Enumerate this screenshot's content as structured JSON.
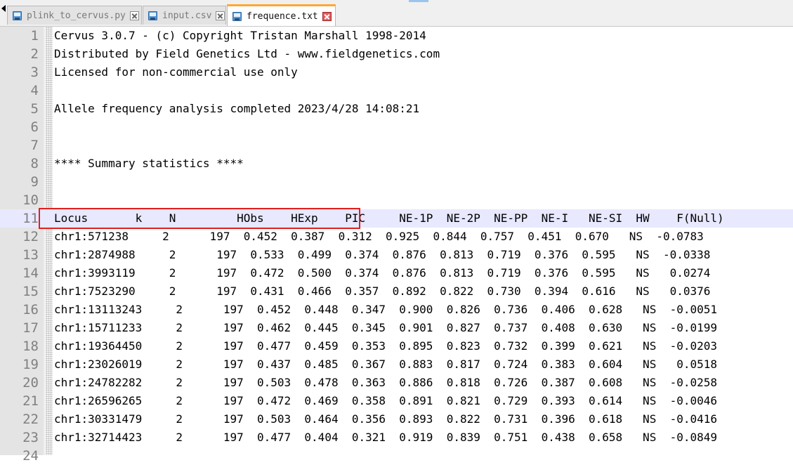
{
  "tabs": [
    {
      "label": "plink_to_cervus.py",
      "icon": "save-disk-icon",
      "active": false
    },
    {
      "label": "input.csv",
      "icon": "save-disk-icon",
      "active": false
    },
    {
      "label": "frequence.txt",
      "icon": "save-disk-icon",
      "active": true
    }
  ],
  "editor": {
    "lines": [
      {
        "n": "1",
        "text": "Cervus 3.0.7 - (c) Copyright Tristan Marshall 1998-2014"
      },
      {
        "n": "2",
        "text": "Distributed by Field Genetics Ltd - www.fieldgenetics.com"
      },
      {
        "n": "3",
        "text": "Licensed for non-commercial use only"
      },
      {
        "n": "4",
        "text": ""
      },
      {
        "n": "5",
        "text": "Allele frequency analysis completed 2023/4/28 14:08:21"
      },
      {
        "n": "6",
        "text": ""
      },
      {
        "n": "7",
        "text": ""
      },
      {
        "n": "8",
        "text": "**** Summary statistics ****"
      },
      {
        "n": "9",
        "text": ""
      },
      {
        "n": "10",
        "text": ""
      },
      {
        "n": "11",
        "text": "Locus       k    N         HObs    HExp    PIC     NE-1P  NE-2P  NE-PP  NE-I   NE-SI  HW    F(Null)"
      },
      {
        "n": "12",
        "text": "chr1:571238     2      197  0.452  0.387  0.312  0.925  0.844  0.757  0.451  0.670   NS  -0.0783"
      },
      {
        "n": "13",
        "text": "chr1:2874988     2      197  0.533  0.499  0.374  0.876  0.813  0.719  0.376  0.595   NS  -0.0338"
      },
      {
        "n": "14",
        "text": "chr1:3993119     2      197  0.472  0.500  0.374  0.876  0.813  0.719  0.376  0.595   NS   0.0274"
      },
      {
        "n": "15",
        "text": "chr1:7523290     2      197  0.431  0.466  0.357  0.892  0.822  0.730  0.394  0.616   NS   0.0376"
      },
      {
        "n": "16",
        "text": "chr1:13113243     2      197  0.452  0.448  0.347  0.900  0.826  0.736  0.406  0.628   NS  -0.0051"
      },
      {
        "n": "17",
        "text": "chr1:15711233     2      197  0.462  0.445  0.345  0.901  0.827  0.737  0.408  0.630   NS  -0.0199"
      },
      {
        "n": "18",
        "text": "chr1:19364450     2      197  0.477  0.459  0.353  0.895  0.823  0.732  0.399  0.621   NS  -0.0203"
      },
      {
        "n": "19",
        "text": "chr1:23026019     2      197  0.437  0.485  0.367  0.883  0.817  0.724  0.383  0.604   NS   0.0518"
      },
      {
        "n": "20",
        "text": "chr1:24782282     2      197  0.503  0.478  0.363  0.886  0.818  0.726  0.387  0.608   NS  -0.0258"
      },
      {
        "n": "21",
        "text": "chr1:26596265     2      197  0.472  0.469  0.358  0.891  0.821  0.729  0.393  0.614   NS  -0.0046"
      },
      {
        "n": "22",
        "text": "chr1:30331479     2      197  0.503  0.464  0.356  0.893  0.822  0.731  0.396  0.618   NS  -0.0416"
      },
      {
        "n": "23",
        "text": "chr1:32714423     2      197  0.477  0.404  0.321  0.919  0.839  0.751  0.438  0.658   NS  -0.0849"
      },
      {
        "n": "24",
        "text": ""
      }
    ],
    "current_line": "11"
  },
  "colors": {
    "active_tab_accent": "#ffa733",
    "annotation_box": "#e02020",
    "current_line_bg": "#e8e8ff"
  }
}
